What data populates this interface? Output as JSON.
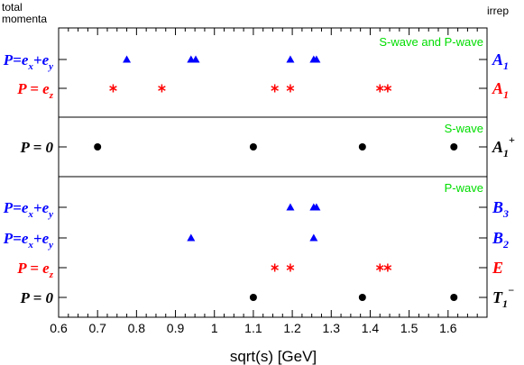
{
  "chart_data": {
    "type": "scatter",
    "xlabel": "sqrt(s)  [GeV]",
    "xlim": [
      0.6,
      1.7
    ],
    "x_ticks": [
      "0.6",
      "0.7",
      "0.8",
      "0.9",
      "1",
      "1.1",
      "1.2",
      "1.3",
      "1.4",
      "1.5",
      "1.6"
    ],
    "left_header": [
      "total",
      "momenta"
    ],
    "right_header": "irrep",
    "colors": {
      "blue": "#0000ff",
      "red": "#ff0000",
      "black": "#000000",
      "green": "#00dd00"
    },
    "panels": [
      {
        "label": "S-wave and P-wave",
        "rows": [
          {
            "momentum": {
              "lhs": "P",
              "terms": [
                [
                  "e",
                  "x"
                ],
                [
                  "e",
                  "y"
                ]
              ]
            },
            "irrep": {
              "base": "A",
              "sub": "1",
              "sup": ""
            },
            "color": "blue",
            "marker": "triangle",
            "x": [
              0.775,
              0.94,
              0.952,
              1.195,
              1.255,
              1.262
            ]
          },
          {
            "momentum": {
              "lhs": "P",
              "terms": [
                [
                  "e",
                  "z"
                ]
              ]
            },
            "irrep": {
              "base": "A",
              "sub": "1",
              "sup": ""
            },
            "color": "red",
            "marker": "asterisk",
            "x": [
              0.74,
              0.865,
              1.155,
              1.195,
              1.425,
              1.445
            ]
          }
        ]
      },
      {
        "label": "S-wave",
        "rows": [
          {
            "momentum": {
              "lhs": "P",
              "zero": "0"
            },
            "irrep": {
              "base": "A",
              "sub": "1",
              "sup": "+"
            },
            "color": "black",
            "marker": "circle",
            "x": [
              0.7,
              1.1,
              1.38,
              1.615
            ]
          }
        ]
      },
      {
        "label": "P-wave",
        "rows": [
          {
            "momentum": {
              "lhs": "P",
              "terms": [
                [
                  "e",
                  "x"
                ],
                [
                  "e",
                  "y"
                ]
              ]
            },
            "irrep": {
              "base": "B",
              "sub": "3",
              "sup": ""
            },
            "color": "blue",
            "marker": "triangle",
            "x": [
              1.195,
              1.255,
              1.262
            ]
          },
          {
            "momentum": {
              "lhs": "P",
              "terms": [
                [
                  "e",
                  "x"
                ],
                [
                  "e",
                  "y"
                ]
              ]
            },
            "irrep": {
              "base": "B",
              "sub": "2",
              "sup": ""
            },
            "color": "blue",
            "marker": "triangle",
            "x": [
              0.94,
              1.255
            ]
          },
          {
            "momentum": {
              "lhs": "P",
              "terms": [
                [
                  "e",
                  "z"
                ]
              ]
            },
            "irrep": {
              "base": "E",
              "sub": "",
              "sup": ""
            },
            "color": "red",
            "marker": "asterisk",
            "x": [
              1.155,
              1.195,
              1.425,
              1.445
            ]
          },
          {
            "momentum": {
              "lhs": "P",
              "zero": "0"
            },
            "irrep": {
              "base": "T",
              "sub": "1",
              "sup": "−"
            },
            "color": "black",
            "marker": "circle",
            "x": [
              1.1,
              1.38,
              1.615
            ]
          }
        ]
      }
    ]
  }
}
